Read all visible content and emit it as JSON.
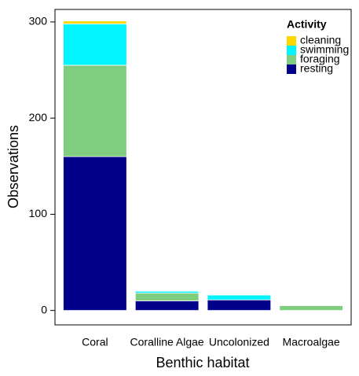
{
  "chart_data": {
    "type": "stacked_bar",
    "x_label": "Benthic habitat",
    "y_label": "Observations",
    "legend_title": "Activity",
    "categories": [
      "Coral",
      "Coralline Algae",
      "Uncolonized",
      "Macroalgae"
    ],
    "series": [
      {
        "name": "resting",
        "color": "#00008b",
        "values": [
          160,
          10,
          11,
          0
        ]
      },
      {
        "name": "foraging",
        "color": "#7fcd7f",
        "values": [
          95,
          8,
          0,
          5
        ]
      },
      {
        "name": "swimming",
        "color": "#00f5ff",
        "values": [
          43,
          2,
          5,
          0
        ]
      },
      {
        "name": "cleaning",
        "color": "#ffd700",
        "values": [
          3,
          0,
          0,
          0
        ]
      }
    ],
    "ylim": [
      -15,
      313
    ],
    "yticks": [
      0,
      100,
      200,
      300
    ],
    "legend_position": "top-right"
  }
}
